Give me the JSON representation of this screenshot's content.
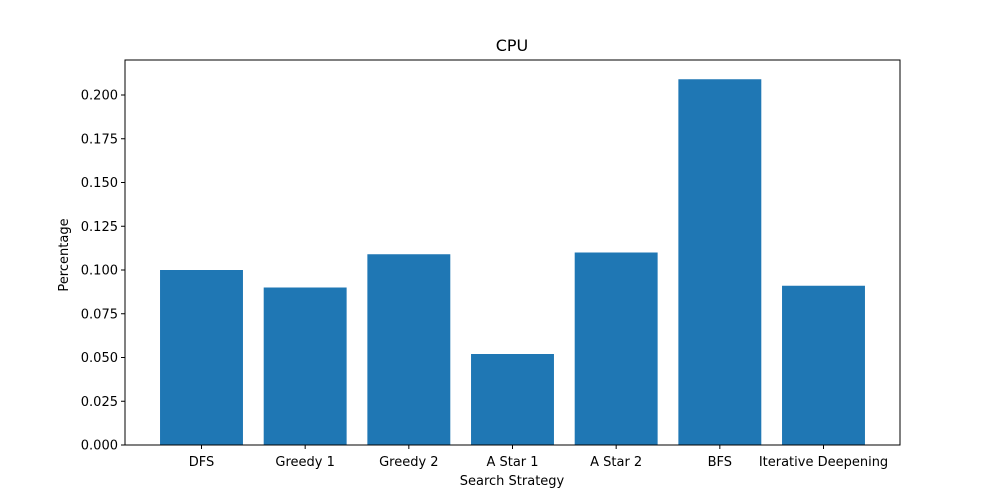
{
  "chart_data": {
    "type": "bar",
    "title": "CPU",
    "xlabel": "Search Strategy",
    "ylabel": "Percentage",
    "categories": [
      "DFS",
      "Greedy 1",
      "Greedy 2",
      "A Star 1",
      "A Star 2",
      "BFS",
      "Iterative Deepening"
    ],
    "values": [
      0.1,
      0.09,
      0.109,
      0.052,
      0.11,
      0.209,
      0.091
    ],
    "ylim": [
      0,
      0.22
    ],
    "yticks": [
      0.0,
      0.025,
      0.05,
      0.075,
      0.1,
      0.125,
      0.15,
      0.175,
      0.2
    ],
    "ytick_labels": [
      "0.000",
      "0.025",
      "0.050",
      "0.075",
      "0.100",
      "0.125",
      "0.150",
      "0.175",
      "0.200"
    ],
    "bar_color": "#1f77b4",
    "grid": false,
    "legend": "none"
  }
}
